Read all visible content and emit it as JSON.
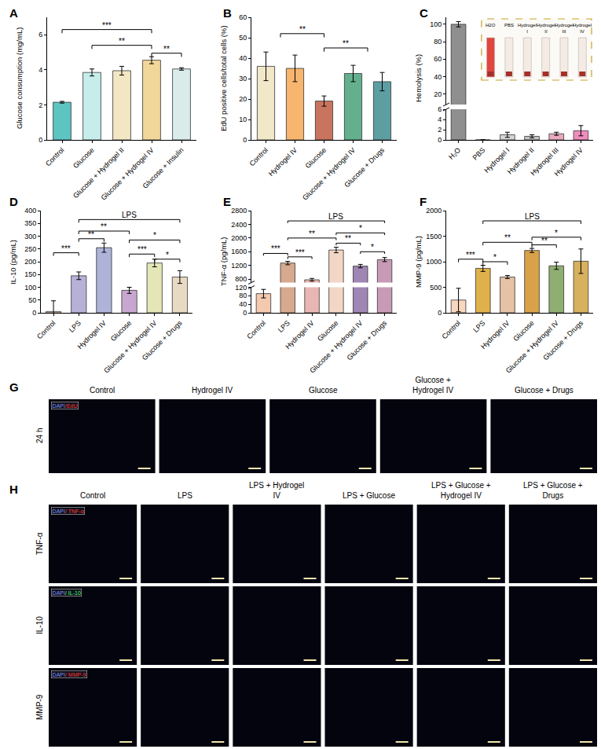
{
  "chart_data": [
    {
      "type": "bar",
      "panel": "A",
      "y_label": "Glucose consumption (mg/mL)",
      "categories": [
        "Control",
        "Glucose",
        "Glucose + Hydrogel II",
        "Glucose + Hydrogel IV",
        "Glucose + Insulin"
      ],
      "values": [
        2.15,
        3.85,
        3.95,
        4.55,
        4.05
      ],
      "errors": [
        0.05,
        0.2,
        0.25,
        0.2,
        0.07
      ],
      "colors": [
        "#5ec4c2",
        "#c6ede9",
        "#f3e6c3",
        "#f2d79a",
        "#d9ece9"
      ],
      "ylim": [
        0,
        7
      ],
      "yticks": [
        0,
        2,
        4,
        6
      ],
      "brackets": [
        {
          "from": 0,
          "to": 3,
          "y": 6.3,
          "label": "***"
        },
        {
          "from": 1,
          "to": 3,
          "y": 5.4,
          "label": "**"
        },
        {
          "from": 3,
          "to": 4,
          "y": 4.95,
          "label": "**"
        }
      ]
    },
    {
      "type": "bar",
      "panel": "B",
      "y_label": "EdU positive cells/total cells (%)",
      "categories": [
        "Control",
        "Hydrogel IV",
        "Glucose",
        "Glucose + Hydrogel IV",
        "Glucose + Drugs"
      ],
      "values": [
        36,
        35,
        19,
        32.5,
        28.5
      ],
      "errors": [
        7,
        6.5,
        2.5,
        4,
        4.5
      ],
      "colors": [
        "#f1e7c9",
        "#f7b56f",
        "#c9745e",
        "#63af8e",
        "#5d9ea3"
      ],
      "ylim": [
        0,
        60
      ],
      "yticks": [
        0,
        10,
        20,
        30,
        40,
        50,
        60
      ],
      "brackets": [
        {
          "from": 0.5,
          "to": 2,
          "y": 52,
          "label": "**"
        },
        {
          "from": 2,
          "to": 3.5,
          "y": 45,
          "label": "**"
        }
      ]
    },
    {
      "type": "bar",
      "panel": "C",
      "y_label": "Hemolysis (%)",
      "categories": [
        "H₂O",
        "PBS",
        "Hydrogel I",
        "Hydrogel II",
        "Hydrogel III",
        "Hydrogel IV"
      ],
      "values": [
        100,
        0,
        1.0,
        0.7,
        1.2,
        1.8
      ],
      "errors": [
        3,
        0,
        0.5,
        0.3,
        0.3,
        1.0
      ],
      "colors": [
        "#8f8f8f",
        "#cfcfcf",
        "#d5d5d5",
        "#c4c4c4",
        "#e9a9bf",
        "#f08cbc"
      ],
      "ylim": [
        [
          0,
          6
        ],
        [
          8,
          108
        ]
      ],
      "yticks": [
        [
          0,
          2,
          4,
          6
        ],
        [
          20,
          40,
          60,
          80,
          100
        ]
      ],
      "brackets": [],
      "inset_labels": [
        "H2O",
        "PBS",
        "Hydrogel I",
        "Hydrogel II",
        "Hydrogel III",
        "Hydrogel IV"
      ]
    },
    {
      "type": "bar",
      "panel": "D",
      "y_label": "IL-10 (pg/mL)",
      "categories": [
        "Control",
        "LPS",
        "Hydrogel IV",
        "Glucose",
        "Glucose + Hydrogel IV",
        "Glucose + Drugs"
      ],
      "values": [
        5,
        145,
        255,
        88,
        195,
        140
      ],
      "errors": [
        42,
        15,
        18,
        12,
        15,
        25
      ],
      "colors": [
        "#f6d2c3",
        "#b7b1d7",
        "#aeb4d8",
        "#c7a7cf",
        "#e4e6b8",
        "#e8d9c2"
      ],
      "ylim": [
        0,
        400
      ],
      "yticks": [
        0,
        50,
        100,
        150,
        200,
        250,
        300,
        350,
        400
      ],
      "brackets": [
        {
          "from": 0,
          "to": 1,
          "y": 235,
          "label": "***"
        },
        {
          "from": 1,
          "to": 2,
          "y": 290,
          "label": "**"
        },
        {
          "from": 1,
          "to": 3,
          "y": 320,
          "label": "**"
        },
        {
          "from": 3,
          "to": 4,
          "y": 230,
          "label": "***"
        },
        {
          "from": 3,
          "to": 5,
          "y": 285,
          "label": "*"
        },
        {
          "from": 4,
          "to": 5,
          "y": 210,
          "label": "*"
        },
        {
          "from": 1,
          "to": 5,
          "y": 365,
          "label": "LPS"
        }
      ]
    },
    {
      "type": "bar",
      "panel": "E",
      "y_label": "TNF-α (pg/mL)",
      "categories": [
        "Control",
        "LPS",
        "Hydrogel IV",
        "Glucose",
        "Glucose + Hydrogel IV",
        "Glucose + Drugs"
      ],
      "values": [
        90,
        1270,
        780,
        1650,
        1180,
        1370
      ],
      "errors": [
        20,
        50,
        40,
        80,
        50,
        60
      ],
      "colors": [
        "#f3c9b0",
        "#d7a98f",
        "#e9b7b3",
        "#f2d6c6",
        "#9f86b4",
        "#c89ab6"
      ],
      "ylim": [
        [
          0,
          120
        ],
        [
          700,
          2800
        ]
      ],
      "yticks": [
        [
          0,
          40,
          80,
          120
        ],
        [
          800,
          1200,
          1600,
          2000,
          2400,
          2800
        ]
      ],
      "brackets": [
        {
          "from": 0,
          "to": 1,
          "y": 1550,
          "label": "***"
        },
        {
          "from": 1,
          "to": 2,
          "y": 1450,
          "label": "***"
        },
        {
          "from": 1,
          "to": 3,
          "y": 2000,
          "label": "**"
        },
        {
          "from": 3,
          "to": 4,
          "y": 1850,
          "label": "**"
        },
        {
          "from": 3,
          "to": 5,
          "y": 2150,
          "label": "*"
        },
        {
          "from": 4,
          "to": 5,
          "y": 1600,
          "label": "*"
        },
        {
          "from": 1,
          "to": 5,
          "y": 2500,
          "label": "LPS"
        }
      ]
    },
    {
      "type": "bar",
      "panel": "F",
      "y_label": "MMP-9 (pg/mL)",
      "categories": [
        "Control",
        "LPS",
        "Hydrogel IV",
        "Glucose",
        "Glucose + Hydrogel IV",
        "Glucose + Drugs"
      ],
      "values": [
        250,
        870,
        700,
        1220,
        920,
        1010
      ],
      "errors": [
        230,
        60,
        30,
        40,
        70,
        240
      ],
      "colors": [
        "#f8d7bd",
        "#e0b14a",
        "#e6c1a4",
        "#d8a24a",
        "#8fae72",
        "#d7b15d"
      ],
      "ylim": [
        0,
        2000
      ],
      "yticks": [
        0,
        500,
        1000,
        1500,
        2000
      ],
      "brackets": [
        {
          "from": 0,
          "to": 1,
          "y": 1050,
          "label": "***"
        },
        {
          "from": 1,
          "to": 2,
          "y": 1000,
          "label": "*"
        },
        {
          "from": 1,
          "to": 3,
          "y": 1380,
          "label": "**"
        },
        {
          "from": 3,
          "to": 4,
          "y": 1330,
          "label": "**"
        },
        {
          "from": 3,
          "to": 5,
          "y": 1480,
          "label": "*"
        },
        {
          "from": 1,
          "to": 5,
          "y": 1800,
          "label": "LPS"
        }
      ]
    }
  ],
  "image_panels": [
    {
      "panel": "G",
      "columns": [
        "Control",
        "Hydrogel IV",
        "Glucose",
        "Glucose + Hydrogel IV",
        "Glucose + Drugs"
      ],
      "rows": [
        {
          "label": "24 h",
          "stain": "DAPI/EdU",
          "stain_color": "#ff3b3b"
        }
      ]
    },
    {
      "panel": "H",
      "columns": [
        "Control",
        "LPS",
        "LPS + Hydrogel IV",
        "LPS + Glucose",
        "LPS + Glucose + Hydrogel IV",
        "LPS + Glucose + Drugs"
      ],
      "rows": [
        {
          "label": "TNF-α",
          "stain": "DAPI/ TNF-α",
          "stain_color": "#ff3b3b"
        },
        {
          "label": "IL-10",
          "stain": "DAPI/ IL-10",
          "stain_color": "#3bff6a"
        },
        {
          "label": "MMP-9",
          "stain": "DAPI/ MMP-9",
          "stain_color": "#ff3b3b"
        }
      ]
    }
  ]
}
